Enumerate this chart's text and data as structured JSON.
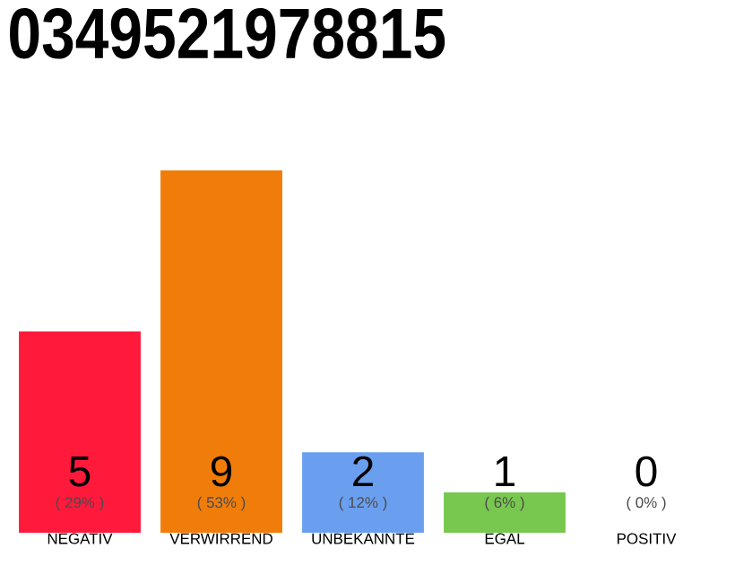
{
  "chart_data": {
    "type": "bar",
    "title": "0349521978815",
    "categories": [
      "NEGATIV",
      "VERWIRREND",
      "UNBEKANNTE",
      "EGAL",
      "POSITIV"
    ],
    "values": [
      5,
      9,
      2,
      1,
      0
    ],
    "colors": [
      "#ff1a3c",
      "#f07d0a",
      "#6a9ff0",
      "#78c850",
      "#22aa44"
    ],
    "data_labels": true,
    "annotations": [
      "( 29% )",
      "( 53% )",
      "( 12% )",
      "( 6% )",
      "( 0% )"
    ]
  }
}
